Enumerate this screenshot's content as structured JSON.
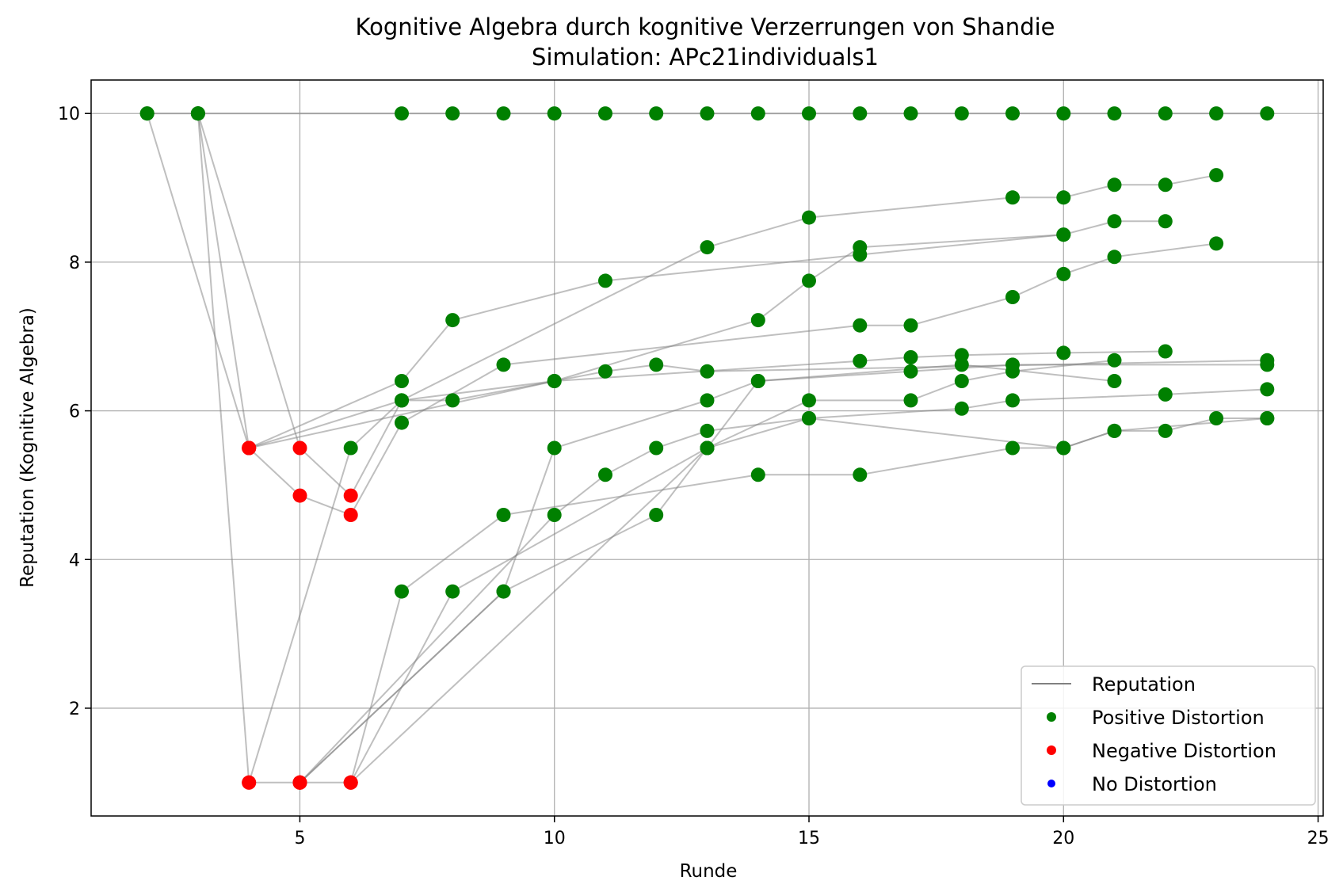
{
  "chart_data": {
    "type": "scatter",
    "title": "Kognitive Algebra durch kognitive Verzerrungen von Shandie",
    "subtitle": "Simulation: APc21individuals1",
    "xlabel": "Runde",
    "ylabel": "Reputation (Kognitive Algebra)",
    "xlim": [
      0.9,
      25.1
    ],
    "ylim": [
      0.55,
      10.45
    ],
    "xticks": [
      5,
      10,
      15,
      20,
      25
    ],
    "yticks": [
      2,
      4,
      6,
      8,
      10
    ],
    "grid": true,
    "legend_position": "lower-right",
    "legend": [
      {
        "label": "Reputation",
        "kind": "line",
        "color": "#808080"
      },
      {
        "label": "Positive Distortion",
        "kind": "dot",
        "color": "#008000"
      },
      {
        "label": "Negative Distortion",
        "kind": "dot",
        "color": "#ff0000"
      },
      {
        "label": "No Distortion",
        "kind": "dot",
        "color": "#0000ff"
      }
    ],
    "colors": {
      "positive": "#008000",
      "negative": "#ff0000",
      "none": "#0000ff",
      "line": "#808080",
      "grid": "#b0b0b0"
    },
    "series": [
      {
        "points": [
          [
            2,
            10
          ],
          [
            3,
            10
          ],
          [
            7,
            10
          ],
          [
            8,
            10
          ],
          [
            9,
            10
          ],
          [
            10,
            10
          ],
          [
            11,
            10
          ],
          [
            12,
            10
          ],
          [
            13,
            10
          ],
          [
            14,
            10
          ],
          [
            15,
            10
          ],
          [
            16,
            10
          ],
          [
            17,
            10
          ],
          [
            18,
            10
          ],
          [
            19,
            10
          ],
          [
            20,
            10
          ],
          [
            21,
            10
          ],
          [
            22,
            10
          ],
          [
            23,
            10
          ],
          [
            24,
            10
          ]
        ],
        "types": [
          "p",
          "p",
          "p",
          "p",
          "p",
          "p",
          "p",
          "p",
          "p",
          "p",
          "p",
          "p",
          "p",
          "p",
          "p",
          "p",
          "p",
          "p",
          "p",
          "p"
        ]
      },
      {
        "points": [
          [
            2,
            10
          ],
          [
            4,
            5.5
          ],
          [
            7,
            6.4
          ],
          [
            8,
            7.22
          ],
          [
            11,
            7.75
          ],
          [
            16,
            8.1
          ],
          [
            20,
            8.37
          ],
          [
            21,
            8.55
          ],
          [
            22,
            8.55
          ]
        ],
        "types": [
          "p",
          "n",
          "p",
          "p",
          "p",
          "p",
          "p",
          "p",
          "p"
        ]
      },
      {
        "points": [
          [
            3,
            10
          ],
          [
            4,
            5.5
          ],
          [
            10,
            6.4
          ],
          [
            14,
            7.22
          ],
          [
            15,
            7.75
          ],
          [
            16,
            8.2
          ],
          [
            20,
            8.37
          ]
        ],
        "types": [
          "p",
          "n",
          "p",
          "p",
          "p",
          "p",
          "p"
        ]
      },
      {
        "points": [
          [
            3,
            10
          ],
          [
            5,
            5.5
          ],
          [
            6,
            4.86
          ],
          [
            7,
            6.14
          ],
          [
            13,
            8.2
          ],
          [
            15,
            8.6
          ],
          [
            19,
            8.87
          ],
          [
            20,
            8.87
          ],
          [
            21,
            9.04
          ],
          [
            22,
            9.04
          ],
          [
            23,
            9.17
          ]
        ],
        "types": [
          "p",
          "n",
          "n",
          "p",
          "p",
          "p",
          "p",
          "p",
          "p",
          "p",
          "p"
        ]
      },
      {
        "points": [
          [
            3,
            10
          ],
          [
            4,
            1.0
          ],
          [
            6,
            5.5
          ],
          [
            7,
            6.14
          ],
          [
            8,
            6.14
          ],
          [
            11,
            6.53
          ],
          [
            12,
            6.62
          ],
          [
            13,
            6.53
          ],
          [
            24,
            6.68
          ]
        ],
        "types": [
          "p",
          "n",
          "p",
          "p",
          "p",
          "p",
          "p",
          "p",
          "p"
        ]
      },
      {
        "points": [
          [
            4,
            5.5
          ],
          [
            5,
            4.86
          ],
          [
            6,
            4.6
          ],
          [
            7,
            5.84
          ],
          [
            9,
            6.62
          ],
          [
            16,
            7.15
          ],
          [
            17,
            7.15
          ],
          [
            19,
            7.53
          ],
          [
            20,
            7.84
          ],
          [
            21,
            8.07
          ],
          [
            23,
            8.25
          ]
        ],
        "types": [
          "n",
          "n",
          "n",
          "p",
          "p",
          "p",
          "p",
          "p",
          "p",
          "p",
          "p"
        ]
      },
      {
        "points": [
          [
            4,
            5.5
          ],
          [
            7,
            6.14
          ],
          [
            10,
            6.4
          ],
          [
            16,
            6.67
          ],
          [
            17,
            6.72
          ],
          [
            18,
            6.75
          ],
          [
            20,
            6.78
          ],
          [
            22,
            6.8
          ]
        ],
        "types": [
          "n",
          "p",
          "p",
          "p",
          "p",
          "p",
          "p",
          "p"
        ]
      },
      {
        "points": [
          [
            4,
            1.0
          ],
          [
            5,
            1.0
          ],
          [
            6,
            1.0
          ],
          [
            8,
            3.57
          ],
          [
            13,
            5.5
          ],
          [
            14,
            6.4
          ],
          [
            17,
            6.53
          ],
          [
            19,
            6.62
          ],
          [
            24,
            6.62
          ]
        ],
        "types": [
          "n",
          "n",
          "n",
          "p",
          "p",
          "p",
          "p",
          "p",
          "p"
        ]
      },
      {
        "points": [
          [
            5,
            1.0
          ],
          [
            9,
            3.57
          ],
          [
            12,
            4.6
          ],
          [
            13,
            5.5
          ],
          [
            15,
            6.14
          ],
          [
            17,
            6.14
          ],
          [
            18,
            6.4
          ],
          [
            19,
            6.53
          ],
          [
            21,
            6.68
          ]
        ],
        "types": [
          "n",
          "p",
          "p",
          "p",
          "p",
          "p",
          "p",
          "p",
          "p"
        ]
      },
      {
        "points": [
          [
            5,
            1.0
          ],
          [
            10,
            4.6
          ],
          [
            11,
            5.14
          ],
          [
            12,
            5.5
          ],
          [
            13,
            5.73
          ],
          [
            15,
            5.9
          ],
          [
            18,
            6.03
          ],
          [
            19,
            6.14
          ],
          [
            22,
            6.22
          ],
          [
            24,
            6.29
          ]
        ],
        "types": [
          "n",
          "p",
          "p",
          "p",
          "p",
          "p",
          "p",
          "p",
          "p",
          "p"
        ]
      },
      {
        "points": [
          [
            6,
            1.0
          ],
          [
            7,
            3.57
          ],
          [
            9,
            4.6
          ],
          [
            14,
            5.14
          ],
          [
            16,
            5.14
          ],
          [
            19,
            5.5
          ],
          [
            20,
            5.5
          ],
          [
            21,
            5.73
          ],
          [
            22,
            5.73
          ],
          [
            23,
            5.9
          ],
          [
            24,
            5.9
          ]
        ],
        "types": [
          "n",
          "p",
          "p",
          "p",
          "p",
          "p",
          "p",
          "p",
          "p",
          "p",
          "p"
        ]
      },
      {
        "points": [
          [
            5,
            1.0
          ],
          [
            9,
            3.57
          ],
          [
            10,
            5.5
          ],
          [
            13,
            6.14
          ],
          [
            14,
            6.4
          ],
          [
            18,
            6.62
          ],
          [
            21,
            6.4
          ]
        ],
        "types": [
          "n",
          "p",
          "p",
          "p",
          "p",
          "p",
          "p"
        ]
      },
      {
        "points": [
          [
            6,
            1.0
          ],
          [
            13,
            5.5
          ],
          [
            15,
            5.9
          ],
          [
            20,
            5.5
          ],
          [
            21,
            5.73
          ],
          [
            24,
            5.9
          ]
        ],
        "types": [
          "n",
          "p",
          "p",
          "p",
          "p",
          "p"
        ]
      }
    ]
  }
}
